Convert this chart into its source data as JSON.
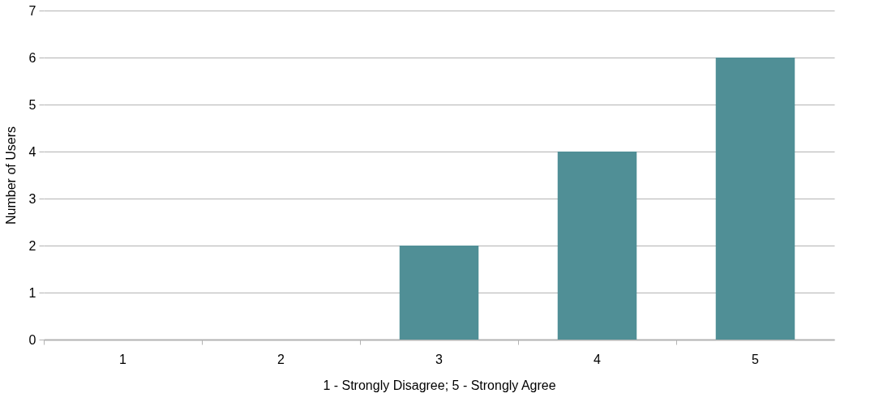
{
  "chart_data": {
    "type": "bar",
    "xlabel": "1 - Strongly Disagree; 5 - Strongly Agree",
    "ylabel": "Number of Users",
    "categories": [
      "1",
      "2",
      "3",
      "4",
      "5"
    ],
    "values": [
      0,
      0,
      2,
      4,
      6
    ],
    "color": "#508f96",
    "ylim": [
      0,
      7
    ],
    "yticks": [
      0,
      1,
      2,
      3,
      4,
      5,
      6,
      7
    ],
    "grid": "y"
  }
}
